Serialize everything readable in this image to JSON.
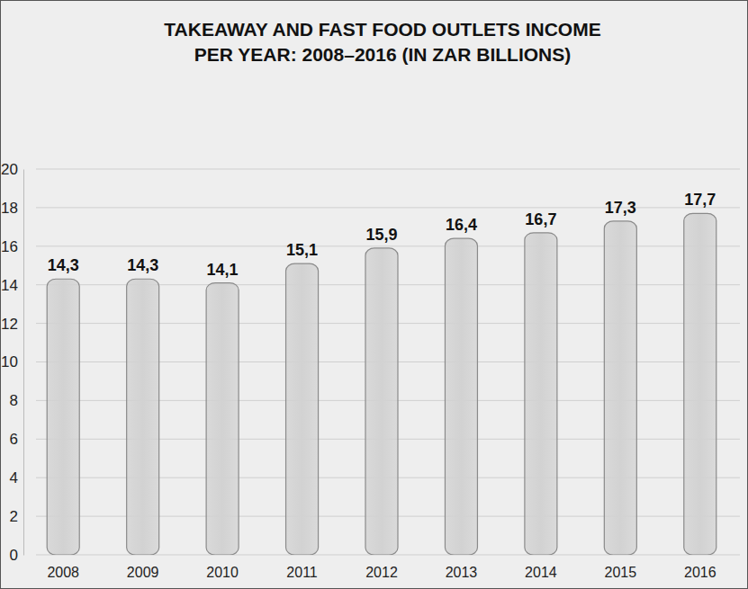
{
  "chart_data": {
    "type": "bar",
    "title": [
      "TAKEAWAY AND FAST FOOD OUTLETS INCOME",
      "PER YEAR: 2008–2016 (IN ZAR BILLIONS)"
    ],
    "categories": [
      "2008",
      "2009",
      "2010",
      "2011",
      "2012",
      "2013",
      "2014",
      "2015",
      "2016"
    ],
    "values": [
      14.3,
      14.3,
      14.1,
      15.1,
      15.9,
      16.4,
      16.7,
      17.3,
      17.7
    ],
    "value_labels": [
      "14,3",
      "14,3",
      "14,1",
      "15,1",
      "15,9",
      "16,4",
      "16,7",
      "17,3",
      "17,7"
    ],
    "data_labels": true,
    "color": "#d2d2d2",
    "ylim": [
      0,
      20
    ],
    "yticks": [
      0,
      2,
      4,
      6,
      8,
      10,
      12,
      14,
      16,
      18,
      20
    ],
    "grid": true
  }
}
